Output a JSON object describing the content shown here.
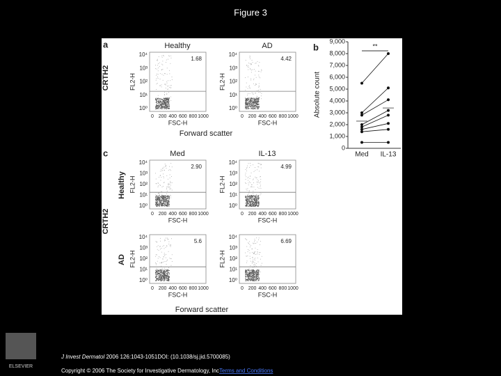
{
  "header": {
    "title": "Figure 3"
  },
  "figure": {
    "flow_axes": {
      "y_label": "FL2-H",
      "x_label": "FSC-H",
      "y_ticks": [
        "10⁰",
        "10¹",
        "10²",
        "10³",
        "10⁴"
      ],
      "x_ticks": [
        0,
        200,
        400,
        600,
        800,
        1000
      ],
      "xlim": [
        0,
        1000
      ]
    },
    "panel_a": {
      "letter": "a",
      "y_title": "CRTH2",
      "x_title": "Forward scatter",
      "plots": [
        {
          "title": "Healthy",
          "percent": "1.68"
        },
        {
          "title": "AD",
          "percent": "4.42"
        }
      ]
    },
    "panel_c": {
      "letter": "c",
      "y_title": "CRTH2",
      "x_title": "Forward scatter",
      "column_titles": [
        "Med",
        "IL-13"
      ],
      "row_titles": [
        "Healthy",
        "AD"
      ],
      "percents": [
        [
          "2.90",
          "4.99"
        ],
        [
          "5.6",
          "6.69"
        ]
      ]
    },
    "panel_b": {
      "letter": "b",
      "type": "line",
      "y_label": "Absolute count",
      "significance": "**",
      "categories": [
        "Med",
        "IL-13"
      ],
      "ylim": [
        0,
        9000
      ],
      "yticks": [
        0,
        {
          "value": 1000,
          "label": "1,000"
        },
        {
          "value": 2000,
          "label": "2,000"
        },
        {
          "value": 3000,
          "label": "3,000"
        },
        {
          "value": 4000,
          "label": "4,000"
        },
        {
          "value": 5000,
          "label": "5,000"
        },
        {
          "value": 6000,
          "label": "6,000"
        },
        {
          "value": 7000,
          "label": "7,000"
        },
        {
          "value": 8000,
          "label": "8,000"
        },
        {
          "value": 9000,
          "label": "9,000"
        }
      ],
      "color": "#111111",
      "mean_color": "#aaaaaa",
      "series": [
        {
          "values": [
            5500,
            8000
          ]
        },
        {
          "values": [
            3000,
            5100
          ]
        },
        {
          "values": [
            2800,
            4100
          ]
        },
        {
          "values": [
            2000,
            3200
          ]
        },
        {
          "values": [
            1800,
            2800
          ]
        },
        {
          "values": [
            1600,
            2100
          ]
        },
        {
          "values": [
            1400,
            1600
          ]
        },
        {
          "values": [
            500,
            500
          ]
        }
      ],
      "mean_values": [
        2300,
        3400
      ]
    }
  },
  "footer": {
    "publisher": "ELSEVIER",
    "journal": "J Invest Dermatol",
    "citation": " 2006 126:1043-1051DOI: (10.1038/sj.jid.5700085)",
    "copyright": "Copyright © 2006 The Society for Investigative Dermatology, Inc",
    "link": "Terms and Conditions"
  }
}
